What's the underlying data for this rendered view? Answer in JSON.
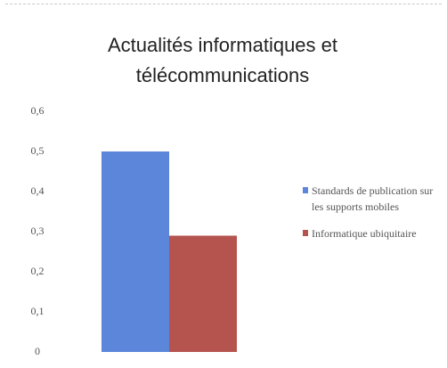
{
  "chart_data": {
    "type": "bar",
    "title": "Actualités informatiques et télécommunications",
    "categories": [
      null
    ],
    "series": [
      {
        "name": "Standards de publication sur les supports mobiles",
        "color": "#5b86d9",
        "values": [
          0.5
        ]
      },
      {
        "name": "Informatique ubiquitaire",
        "color": "#b5534e",
        "values": [
          0.29
        ]
      }
    ],
    "ylim": [
      0,
      0.6
    ],
    "yticks": [
      0,
      {
        "value": 0.1,
        "label": "0,1"
      },
      {
        "value": 0.2,
        "label": "0,2"
      },
      {
        "value": 0.3,
        "label": "0,3"
      },
      {
        "value": 0.4,
        "label": "0,4"
      },
      {
        "value": 0.5,
        "label": "0,5"
      },
      {
        "value": 0.6,
        "label": "0,6"
      }
    ],
    "grid": false,
    "legend": "right"
  }
}
